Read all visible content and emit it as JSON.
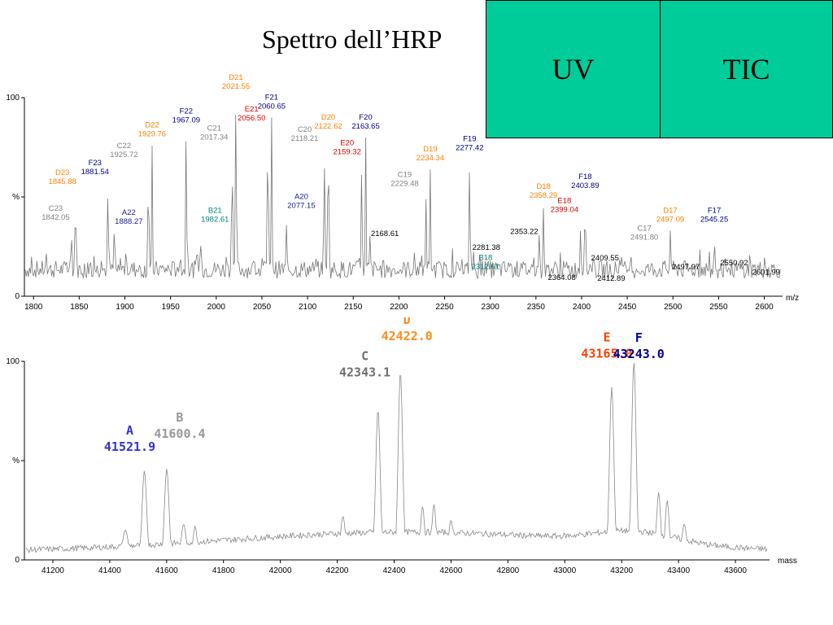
{
  "slide": {
    "title": "Spettro dell’HRP"
  },
  "boxes": {
    "uv": "UV",
    "tic": "TIC"
  },
  "chart_data": [
    {
      "type": "line",
      "title": "",
      "xlabel": "m/z",
      "ylabel": "%",
      "xlim": [
        1790,
        2620
      ],
      "ylim": [
        0,
        100
      ],
      "xticks": [
        1800,
        1850,
        1900,
        1950,
        2000,
        2050,
        2100,
        2150,
        2200,
        2250,
        2300,
        2350,
        2400,
        2450,
        2500,
        2550,
        2600
      ],
      "yticks": [
        "0",
        "%",
        "100"
      ],
      "colors": {
        "A": "#1a1a99",
        "B": "#008080",
        "C": "#808080",
        "D": "#ff8000",
        "E": "#e00000",
        "F": "#000080",
        "other": "#000000"
      },
      "peaks": [
        {
          "x": 1842.05,
          "y": 30,
          "series": "C",
          "name": "C23",
          "text": "1842.05"
        },
        {
          "x": 1845.88,
          "y": 52,
          "series": "D",
          "name": "D23",
          "text": "1845.88"
        },
        {
          "x": 1881.54,
          "y": 57,
          "series": "F",
          "name": "F23",
          "text": "1881.54"
        },
        {
          "x": 1888.27,
          "y": 32,
          "series": "A",
          "name": "A22",
          "text": "1888.27"
        },
        {
          "x": 1925.72,
          "y": 64,
          "series": "C",
          "name": "C22",
          "text": "1925.72"
        },
        {
          "x": 1929.76,
          "y": 76,
          "series": "D",
          "name": "D22",
          "text": "1929.76"
        },
        {
          "x": 1967.09,
          "y": 83,
          "series": "F",
          "name": "F22",
          "text": "1967.09"
        },
        {
          "x": 1982.61,
          "y": 33,
          "series": "B",
          "name": "B21",
          "text": "1982.61"
        },
        {
          "x": 2017.34,
          "y": 72,
          "series": "C",
          "name": "C21",
          "text": "2017.34"
        },
        {
          "x": 2021.55,
          "y": 100,
          "series": "D",
          "name": "D21",
          "text": "2021.55"
        },
        {
          "x": 2056.5,
          "y": 84,
          "series": "E",
          "name": "E21",
          "text": "2056.50"
        },
        {
          "x": 2060.65,
          "y": 90,
          "series": "F",
          "name": "F21",
          "text": "2060.65"
        },
        {
          "x": 2077.15,
          "y": 40,
          "series": "A",
          "name": "A20",
          "text": "2077.15"
        },
        {
          "x": 2118.21,
          "y": 73,
          "series": "C",
          "name": "C20",
          "text": "2118.21"
        },
        {
          "x": 2122.62,
          "y": 80,
          "series": "D",
          "name": "D20",
          "text": "2122.62"
        },
        {
          "x": 2159.32,
          "y": 67,
          "series": "E",
          "name": "E20",
          "text": "2159.32"
        },
        {
          "x": 2163.65,
          "y": 80,
          "series": "F",
          "name": "F20",
          "text": "2163.65"
        },
        {
          "x": 2168.61,
          "y": 34,
          "series": "other",
          "name": "",
          "text": "2168.61"
        },
        {
          "x": 2229.48,
          "y": 51,
          "series": "C",
          "name": "C19",
          "text": "2229.48"
        },
        {
          "x": 2234.34,
          "y": 64,
          "series": "D",
          "name": "D19",
          "text": "2234.34"
        },
        {
          "x": 2277.42,
          "y": 69,
          "series": "F",
          "name": "F19",
          "text": "2277.42"
        },
        {
          "x": 2281.38,
          "y": 27,
          "series": "other",
          "name": "",
          "text": "2281.38"
        },
        {
          "x": 2312.61,
          "y": 15,
          "series": "B",
          "name": "B18",
          "text": "2312.61"
        },
        {
          "x": 2353.22,
          "y": 35,
          "series": "other",
          "name": "",
          "text": "2353.22"
        },
        {
          "x": 2358.29,
          "y": 45,
          "series": "D",
          "name": "D18",
          "text": "2358.29"
        },
        {
          "x": 2364.08,
          "y": 16,
          "series": "other",
          "name": "",
          "text": "2364.08"
        },
        {
          "x": 2399.04,
          "y": 38,
          "series": "E",
          "name": "E18",
          "text": "2399.04"
        },
        {
          "x": 2403.89,
          "y": 50,
          "series": "F",
          "name": "F18",
          "text": "2403.89"
        },
        {
          "x": 2409.55,
          "y": 20,
          "series": "other",
          "name": "",
          "text": "2409.55"
        },
        {
          "x": 2412.89,
          "y": 14,
          "series": "other",
          "name": "",
          "text": "2412.89"
        },
        {
          "x": 2491.8,
          "y": 24,
          "series": "C",
          "name": "C17",
          "text": "2491.80"
        },
        {
          "x": 2497.09,
          "y": 33,
          "series": "D",
          "name": "D17",
          "text": "2497.09"
        },
        {
          "x": 2497.97,
          "y": 18,
          "series": "other",
          "name": "",
          "text": "2497.97"
        },
        {
          "x": 2545.25,
          "y": 33,
          "series": "F",
          "name": "F17",
          "text": "2545.25"
        },
        {
          "x": 2550.92,
          "y": 20,
          "series": "other",
          "name": "",
          "text": "2550.92"
        },
        {
          "x": 2601.99,
          "y": 12,
          "series": "other",
          "name": "",
          "text": "2601.99"
        }
      ]
    },
    {
      "type": "line",
      "title": "",
      "xlabel": "mass",
      "ylabel": "%",
      "xlim": [
        41100,
        43720
      ],
      "ylim": [
        0,
        100
      ],
      "xticks": [
        41200,
        41400,
        41600,
        41800,
        42000,
        42200,
        42400,
        42600,
        42800,
        43000,
        43200,
        43400,
        43600
      ],
      "yticks": [
        "0",
        "%",
        "100"
      ],
      "peaks": [
        {
          "x": 41521.9,
          "y": 45,
          "letter": "A",
          "text": "41521.9",
          "color": "#3333cc"
        },
        {
          "x": 41600.4,
          "y": 46,
          "letter": "B",
          "text": "41600.4",
          "color": "#999999"
        },
        {
          "x": 42343.1,
          "y": 76,
          "letter": "C",
          "text": "42343.1",
          "color": "#707070"
        },
        {
          "x": 42422.0,
          "y": 95,
          "letter": "D",
          "text": "42422.0",
          "color": "#ff8c1a"
        },
        {
          "x": 43165.0,
          "y": 87,
          "letter": "E",
          "text": "43165.0",
          "color": "#ff4000"
        },
        {
          "x": 43243.0,
          "y": 100,
          "letter": "F",
          "text": "43243.0",
          "color": "#000099"
        }
      ]
    }
  ]
}
